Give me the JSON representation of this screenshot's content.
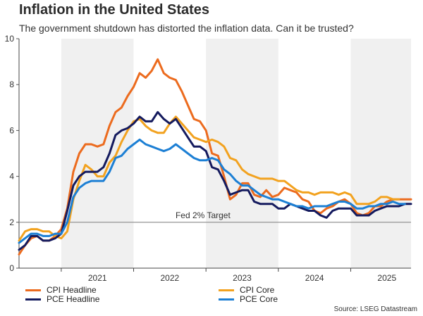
{
  "header": {
    "title": "Inflation in the United States",
    "subtitle": "The government shutdown has distorted the inflation data. Can it be trusted?"
  },
  "source": "Source: LSEG Datastream",
  "chart_data": {
    "type": "line",
    "title": "Inflation in the United States",
    "subtitle": "The government shutdown has distorted the inflation data. Can it be trusted?",
    "xlabel": "",
    "ylabel": "",
    "ylim": [
      0,
      10
    ],
    "yticks": [
      0,
      2,
      4,
      6,
      8,
      10
    ],
    "x_years": [
      "2021",
      "2022",
      "2023",
      "2024",
      "2025"
    ],
    "x_start": "2020-06",
    "x_end": "2025-11",
    "grid": false,
    "shaded_years": [
      "2021",
      "2023",
      "2025"
    ],
    "legend": "bottom",
    "reference_line": {
      "value": 2,
      "label": "Fed 2% Target"
    },
    "series": [
      {
        "name": "CPI Headline",
        "color": "#ec6b1e",
        "start": "2020-06",
        "values": [
          0.6,
          1.0,
          1.3,
          1.4,
          1.2,
          1.2,
          1.4,
          1.7,
          2.6,
          4.2,
          5.0,
          5.4,
          5.4,
          5.3,
          5.4,
          6.2,
          6.8,
          7.0,
          7.5,
          7.9,
          8.5,
          8.3,
          8.6,
          9.1,
          8.5,
          8.3,
          8.2,
          7.7,
          7.1,
          6.5,
          6.4,
          6.0,
          5.0,
          4.9,
          4.0,
          3.0,
          3.2,
          3.7,
          3.7,
          3.2,
          3.1,
          3.4,
          3.1,
          3.2,
          3.5,
          3.4,
          3.3,
          3.0,
          2.9,
          2.5,
          2.4,
          2.6,
          2.7,
          2.9,
          3.0,
          2.8,
          2.4,
          2.3,
          2.4,
          2.7,
          2.7,
          2.9,
          3.0,
          3.0,
          3.0,
          3.0
        ]
      },
      {
        "name": "CPI Core",
        "color": "#f2a21f",
        "start": "2020-06",
        "values": [
          1.2,
          1.6,
          1.7,
          1.7,
          1.6,
          1.6,
          1.4,
          1.3,
          1.6,
          3.0,
          3.8,
          4.5,
          4.3,
          4.0,
          4.0,
          4.6,
          4.9,
          5.5,
          6.0,
          6.4,
          6.5,
          6.2,
          6.0,
          5.9,
          5.9,
          6.3,
          6.6,
          6.3,
          6.0,
          5.7,
          5.6,
          5.5,
          5.6,
          5.5,
          5.3,
          4.8,
          4.7,
          4.3,
          4.1,
          4.0,
          3.9,
          3.9,
          3.9,
          3.8,
          3.8,
          3.6,
          3.4,
          3.3,
          3.3,
          3.2,
          3.3,
          3.3,
          3.3,
          3.2,
          3.3,
          3.2,
          2.8,
          2.8,
          2.8,
          2.9,
          3.1,
          3.1,
          3.0,
          3.0
        ]
      },
      {
        "name": "PCE Headline",
        "color": "#141a5e",
        "start": "2020-06",
        "values": [
          0.8,
          1.0,
          1.4,
          1.4,
          1.2,
          1.2,
          1.3,
          1.5,
          2.5,
          3.6,
          4.0,
          4.2,
          4.2,
          4.2,
          4.4,
          5.0,
          5.8,
          6.0,
          6.1,
          6.3,
          6.6,
          6.4,
          6.4,
          6.8,
          6.5,
          6.3,
          6.5,
          6.1,
          5.7,
          5.3,
          5.3,
          5.1,
          4.4,
          4.3,
          3.8,
          3.2,
          3.3,
          3.4,
          3.4,
          2.9,
          2.8,
          2.8,
          2.8,
          2.6,
          2.6,
          2.8,
          2.7,
          2.6,
          2.5,
          2.5,
          2.3,
          2.2,
          2.5,
          2.6,
          2.6,
          2.6,
          2.3,
          2.3,
          2.3,
          2.5,
          2.6,
          2.7,
          2.7,
          2.7,
          2.8,
          2.8
        ]
      },
      {
        "name": "PCE Core",
        "color": "#1c7fd4",
        "start": "2020-06",
        "values": [
          1.1,
          1.3,
          1.5,
          1.5,
          1.4,
          1.4,
          1.5,
          1.5,
          2.0,
          3.1,
          3.5,
          3.7,
          3.8,
          3.8,
          3.8,
          4.2,
          4.8,
          4.9,
          5.2,
          5.4,
          5.6,
          5.4,
          5.3,
          5.2,
          5.1,
          5.2,
          5.4,
          5.2,
          5.0,
          4.8,
          4.7,
          4.7,
          4.8,
          4.7,
          4.3,
          4.1,
          3.8,
          3.6,
          3.6,
          3.4,
          3.2,
          3.1,
          3.0,
          3.0,
          2.9,
          2.8,
          2.7,
          2.7,
          2.6,
          2.7,
          2.7,
          2.7,
          2.8,
          2.9,
          2.9,
          2.8,
          2.6,
          2.6,
          2.7,
          2.7,
          2.8,
          2.8,
          2.9,
          2.8,
          2.8
        ]
      }
    ]
  }
}
